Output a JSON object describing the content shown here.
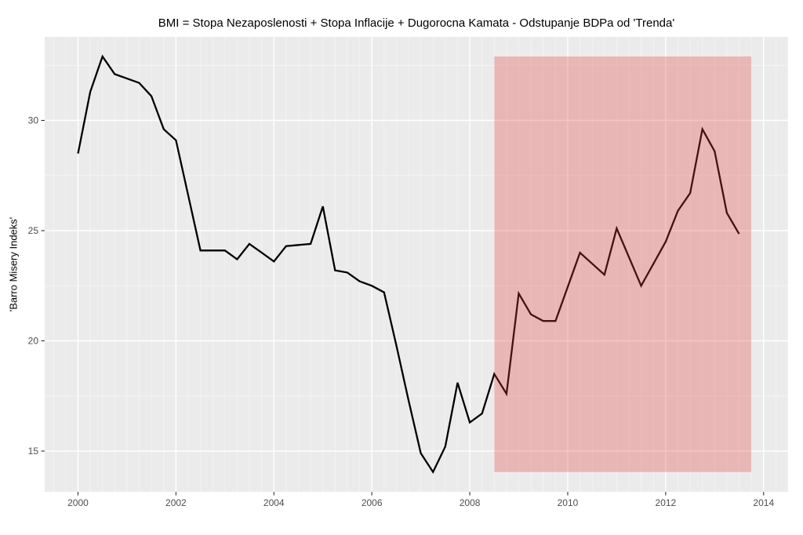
{
  "chart_data": {
    "type": "line",
    "title": "BMI = Stopa Nezaposlenosti + Stopa Inflacije + Dugorocna Kamata - Odstupanje BDPa od 'Trenda'",
    "xlabel": "",
    "ylabel": "'Barro Misery Indeks'",
    "x": [
      2000.0,
      2000.25,
      2000.5,
      2000.75,
      2001.0,
      2001.25,
      2001.5,
      2001.75,
      2002.0,
      2002.25,
      2002.5,
      2002.75,
      2003.0,
      2003.25,
      2003.5,
      2003.75,
      2004.0,
      2004.25,
      2004.5,
      2004.75,
      2005.0,
      2005.25,
      2005.5,
      2005.75,
      2006.0,
      2006.25,
      2006.5,
      2006.75,
      2007.0,
      2007.25,
      2007.5,
      2007.75,
      2008.0,
      2008.25,
      2008.5,
      2008.75,
      2009.0,
      2009.25,
      2009.5,
      2009.75,
      2010.0,
      2010.25,
      2010.5,
      2010.75,
      2011.0,
      2011.25,
      2011.5,
      2011.75,
      2012.0,
      2012.25,
      2012.5,
      2012.75,
      2013.0,
      2013.25,
      2013.5
    ],
    "y": [
      28.5,
      31.3,
      32.9,
      32.1,
      31.9,
      31.7,
      31.1,
      29.6,
      29.1,
      26.6,
      24.1,
      24.1,
      24.1,
      23.7,
      24.4,
      24.0,
      23.6,
      24.3,
      24.35,
      24.4,
      26.1,
      23.2,
      23.1,
      22.7,
      22.5,
      22.2,
      19.8,
      17.3,
      14.9,
      14.05,
      15.2,
      18.1,
      16.3,
      16.7,
      18.5,
      17.6,
      22.15,
      21.2,
      20.9,
      20.9,
      22.45,
      24.0,
      23.5,
      23.0,
      25.1,
      23.8,
      22.5,
      23.5,
      24.5,
      25.9,
      26.7,
      29.6,
      28.6,
      25.8,
      24.85
    ],
    "x_ticks": [
      2000,
      2002,
      2004,
      2006,
      2008,
      2010,
      2012,
      2014
    ],
    "y_ticks": [
      15,
      20,
      25,
      30
    ],
    "y_minor": [
      17.5,
      22.5,
      27.5,
      32.5
    ],
    "x_minor_step": 0.25,
    "xlim": [
      1999.32,
      2014.5
    ],
    "ylim": [
      13.15,
      33.79
    ],
    "grid": true,
    "legend": "none",
    "highlight_region": {
      "x0": 2008.5,
      "x1": 2013.75,
      "y0": 14.05,
      "y1": 32.9,
      "fill": "rgba(228,58,58,0.30)"
    },
    "line_color": "#000000",
    "line_width": 2.3,
    "panel_bg": "#EBEBEB",
    "grid_color": "#FFFFFF",
    "tick_color": "#333333",
    "tick_label_color": "#4D4D4D"
  }
}
